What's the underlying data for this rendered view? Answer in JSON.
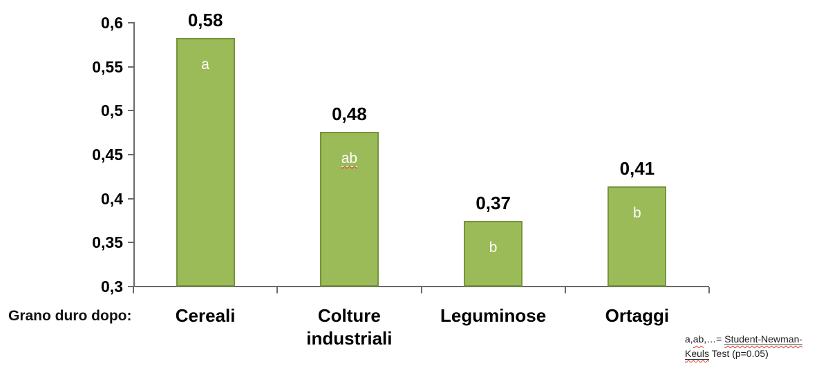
{
  "chart_data": {
    "type": "bar",
    "title": "",
    "xlabel": "",
    "ylabel": "",
    "xlabel_prefix": "Grano duro dopo:",
    "categories": [
      "Cereali",
      "Colture industriali",
      "Leguminose",
      "Ortaggi"
    ],
    "values": [
      0.58,
      0.48,
      0.37,
      0.41
    ],
    "value_labels": [
      "0,58",
      "0,48",
      "0,37",
      "0,41"
    ],
    "bar_top_values": [
      0.582,
      0.475,
      0.374,
      0.413
    ],
    "significance_letters": [
      "a",
      "ab",
      "b",
      "b"
    ],
    "letter_has_spellcheck_squiggle": [
      false,
      true,
      false,
      false
    ],
    "ylim": [
      0.3,
      0.6
    ],
    "ytick_interval": 0.05,
    "ytick_labels": [
      "0,3",
      "0,35",
      "0,4",
      "0,45",
      "0,5",
      "0,55",
      "0,6"
    ],
    "grid": false,
    "legend": "none",
    "footnote": {
      "plain_text": "a,ab,…= Student-Newman-Keuls Test (p=0.05)",
      "line1_segments": [
        {
          "text": "a,",
          "underline": false,
          "squiggle": false
        },
        {
          "text": "ab",
          "underline": false,
          "squiggle": true
        },
        {
          "text": ",…= ",
          "underline": false,
          "squiggle": false
        },
        {
          "text": "Student-Newman-",
          "underline": true,
          "squiggle": true
        }
      ],
      "line2_segments": [
        {
          "text": "Keuls",
          "underline": true,
          "squiggle": true
        },
        {
          "text": " Test (p=0.05)",
          "underline": false,
          "squiggle": false
        }
      ]
    },
    "colors": {
      "background": "#FFFFFF",
      "bar_fill": "#9BBB59",
      "bar_border": "#77933C",
      "axis": "#6A6A6A",
      "value_label_text": "#000000",
      "category_label_text": "#000000",
      "letter_text": "#FFFFFF",
      "spellcheck_squiggle": "#E03C31"
    }
  }
}
